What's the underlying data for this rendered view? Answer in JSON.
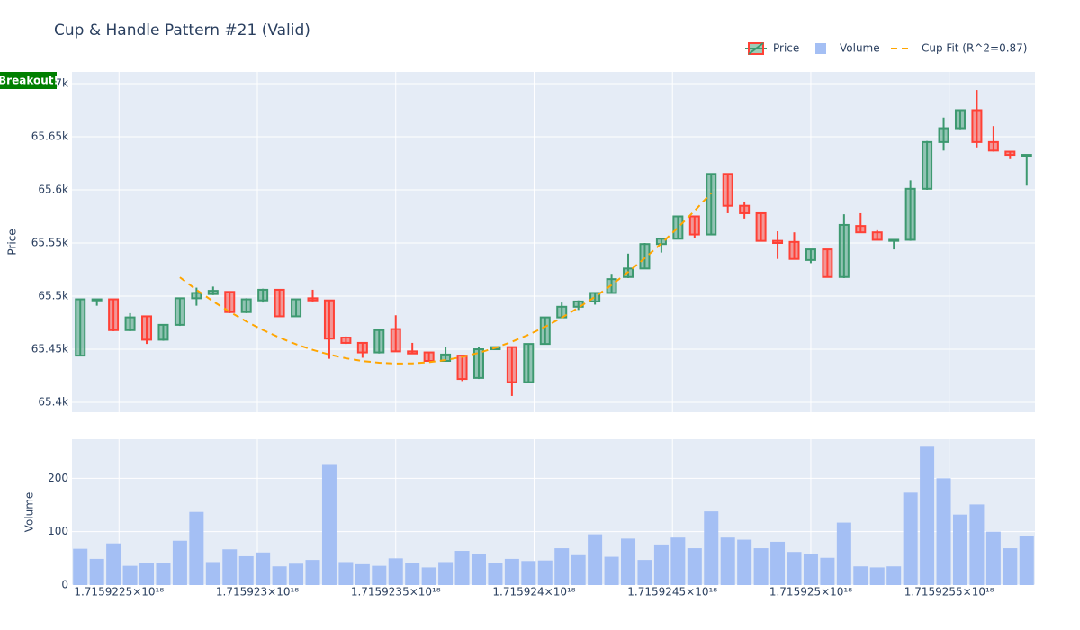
{
  "chart_data": [
    {
      "type": "candlestick",
      "title": "Cup & Handle Pattern #21 (Valid)",
      "y_label": "Price",
      "annotation": "Breakout!",
      "annotation_color": "#008000",
      "grid": true,
      "xlim": [
        1.71592233e+18,
        1.71592581e+18
      ],
      "xticks": [
        1.7159225e+18,
        1.715923e+18,
        1.7159235e+18,
        1.715924e+18,
        1.7159245e+18,
        1.715925e+18,
        1.7159255e+18
      ],
      "ylim": [
        65390.7,
        65711
      ],
      "yticks": [
        {
          "value": 65400,
          "label": "65.4k"
        },
        {
          "value": 65450,
          "label": "65.45k"
        },
        {
          "value": 65500,
          "label": "65.5k"
        },
        {
          "value": 65550,
          "label": "65.55k"
        },
        {
          "value": 65600,
          "label": "65.6k"
        },
        {
          "value": 65650,
          "label": "65.65k"
        },
        {
          "value": 65700,
          "label": "65.7k"
        }
      ],
      "series": [
        {
          "name": "Price",
          "type": "candlestick",
          "increasing_color": "#3D9970",
          "decreasing_color": "#FF4136",
          "x": [
            1.71592236e+18,
            1.71592242e+18,
            1.71592248e+18,
            1.71592254e+18,
            1.7159226e+18,
            1.71592266e+18,
            1.71592272e+18,
            1.71592278e+18,
            1.71592284e+18,
            1.7159229e+18,
            1.71592296e+18,
            1.71592302e+18,
            1.71592308e+18,
            1.71592314e+18,
            1.7159232e+18,
            1.71592326e+18,
            1.71592332e+18,
            1.71592338e+18,
            1.71592344e+18,
            1.7159235e+18,
            1.71592356e+18,
            1.71592362e+18,
            1.71592368e+18,
            1.71592374e+18,
            1.7159238e+18,
            1.71592386e+18,
            1.71592392e+18,
            1.71592398e+18,
            1.71592404e+18,
            1.7159241e+18,
            1.71592416e+18,
            1.71592422e+18,
            1.71592428e+18,
            1.71592434e+18,
            1.7159244e+18,
            1.71592446e+18,
            1.71592452e+18,
            1.71592458e+18,
            1.71592464e+18,
            1.7159247e+18,
            1.71592476e+18,
            1.71592482e+18,
            1.71592488e+18,
            1.71592494e+18,
            1.715925e+18,
            1.71592506e+18,
            1.71592512e+18,
            1.71592518e+18,
            1.71592524e+18,
            1.7159253e+18,
            1.71592536e+18,
            1.71592542e+18,
            1.71592548e+18,
            1.71592554e+18,
            1.7159256e+18,
            1.71592566e+18,
            1.71592572e+18,
            1.71592578e+18
          ],
          "open": [
            65444,
            65496,
            65497,
            65468,
            65481,
            65459,
            65473,
            65498,
            65502,
            65504,
            65485,
            65496,
            65506,
            65481,
            65498,
            65496,
            65461,
            65456,
            65447,
            65469,
            65448,
            65447,
            65439,
            65444,
            65423,
            65450,
            65452,
            65419,
            65455,
            65480,
            65490,
            65495,
            65503,
            65518,
            65526,
            65549,
            65554,
            65575,
            65558,
            65615,
            65585,
            65578,
            65552,
            65551,
            65534,
            65544,
            65518,
            65566,
            65560,
            65552,
            65553,
            65601,
            65645,
            65658,
            65675,
            65645,
            65636,
            65632
          ],
          "high": [
            65497,
            65497,
            65497,
            65484,
            65481,
            65473,
            65498,
            65508,
            65509,
            65504,
            65498,
            65507,
            65506,
            65497,
            65506,
            65496,
            65462,
            65456,
            65468,
            65482,
            65456,
            65447,
            65452,
            65444,
            65452,
            65452,
            65452,
            65455,
            65480,
            65494,
            65496,
            65503,
            65521,
            65540,
            65550,
            65555,
            65575,
            65575,
            65615,
            65615,
            65589,
            65578,
            65561,
            65560,
            65544,
            65544,
            65577,
            65578,
            65562,
            65553,
            65609,
            65646,
            65668,
            65675,
            65694,
            65660,
            65636,
            65633
          ],
          "low": [
            65444,
            65491,
            65467,
            65467,
            65455,
            65458,
            65472,
            65491,
            65501,
            65484,
            65484,
            65494,
            65481,
            65481,
            65495,
            65441,
            65455,
            65442,
            65446,
            65448,
            65446,
            65439,
            65439,
            65420,
            65422,
            65450,
            65406,
            65419,
            65455,
            65480,
            65487,
            65492,
            65503,
            65517,
            65526,
            65541,
            65554,
            65555,
            65558,
            65578,
            65573,
            65552,
            65535,
            65535,
            65531,
            65518,
            65517,
            65560,
            65553,
            65544,
            65552,
            65600,
            65637,
            65657,
            65640,
            65636,
            65629,
            65604
          ],
          "close": [
            65497,
            65497,
            65468,
            65480,
            65459,
            65473,
            65498,
            65503,
            65505,
            65485,
            65497,
            65506,
            65481,
            65497,
            65496,
            65460,
            65456,
            65447,
            65468,
            65448,
            65446,
            65439,
            65445,
            65422,
            65450,
            65452,
            65419,
            65455,
            65480,
            65490,
            65495,
            65503,
            65516,
            65526,
            65549,
            65554,
            65575,
            65558,
            65615,
            65585,
            65578,
            65552,
            65550,
            65535,
            65544,
            65518,
            65567,
            65560,
            65553,
            65553,
            65601,
            65645,
            65658,
            65675,
            65645,
            65637,
            65633,
            65633
          ]
        },
        {
          "name": "Cup Fit (R^2=0.87)",
          "type": "line",
          "color": "#FFA500",
          "dash": true,
          "x": [
            1.71592272e+18,
            1.71592278e+18,
            1.71592284e+18,
            1.7159229e+18,
            1.71592296e+18,
            1.71592302e+18,
            1.71592308e+18,
            1.71592314e+18,
            1.7159232e+18,
            1.71592326e+18,
            1.71592332e+18,
            1.71592338e+18,
            1.71592344e+18,
            1.7159235e+18,
            1.71592356e+18,
            1.71592362e+18,
            1.71592368e+18,
            1.71592374e+18,
            1.7159238e+18,
            1.71592386e+18,
            1.71592392e+18,
            1.71592398e+18,
            1.71592404e+18,
            1.7159241e+18,
            1.71592416e+18,
            1.71592422e+18,
            1.71592428e+18,
            1.71592434e+18,
            1.7159244e+18,
            1.71592446e+18,
            1.71592452e+18,
            1.71592458e+18,
            1.71592464e+18
          ],
          "values": [
            65517.7,
            65505.9,
            65495.1,
            65485.2,
            65476.2,
            65468.1,
            65461,
            65454.7,
            65449.4,
            65445,
            65441.5,
            65438.9,
            65437.3,
            65436.5,
            65436.7,
            65437.8,
            65439.8,
            65442.8,
            65446.6,
            65451.4,
            65457.1,
            65463.7,
            65471.2,
            65479.7,
            65489.1,
            65499.3,
            65510.5,
            65522.7,
            65535.7,
            65549.6,
            65564.5,
            65580.3,
            65597
          ]
        }
      ]
    },
    {
      "type": "bar",
      "y_label": "Volume",
      "grid": true,
      "xlim": [
        1.71592233e+18,
        1.71592581e+18
      ],
      "xticks": [
        {
          "value": 1.7159225e+18,
          "label": "1.7159225×10¹⁸"
        },
        {
          "value": 1.715923e+18,
          "label": "1.715923×10¹⁸"
        },
        {
          "value": 1.7159235e+18,
          "label": "1.7159235×10¹⁸"
        },
        {
          "value": 1.715924e+18,
          "label": "1.715924×10¹⁸"
        },
        {
          "value": 1.7159245e+18,
          "label": "1.7159245×10¹⁸"
        },
        {
          "value": 1.715925e+18,
          "label": "1.715925×10¹⁸"
        },
        {
          "value": 1.7159255e+18,
          "label": "1.7159255×10¹⁸"
        }
      ],
      "ylim": [
        0,
        273
      ],
      "yticks": [
        0,
        100,
        200
      ],
      "series": [
        {
          "name": "Volume",
          "type": "bar",
          "color": "#a4bff4",
          "x": [
            1.71592236e+18,
            1.71592242e+18,
            1.71592248e+18,
            1.71592254e+18,
            1.7159226e+18,
            1.71592266e+18,
            1.71592272e+18,
            1.71592278e+18,
            1.71592284e+18,
            1.7159229e+18,
            1.71592296e+18,
            1.71592302e+18,
            1.71592308e+18,
            1.71592314e+18,
            1.7159232e+18,
            1.71592326e+18,
            1.71592332e+18,
            1.71592338e+18,
            1.71592344e+18,
            1.7159235e+18,
            1.71592356e+18,
            1.71592362e+18,
            1.71592368e+18,
            1.71592374e+18,
            1.7159238e+18,
            1.71592386e+18,
            1.71592392e+18,
            1.71592398e+18,
            1.71592404e+18,
            1.7159241e+18,
            1.71592416e+18,
            1.71592422e+18,
            1.71592428e+18,
            1.71592434e+18,
            1.7159244e+18,
            1.71592446e+18,
            1.71592452e+18,
            1.71592458e+18,
            1.71592464e+18,
            1.7159247e+18,
            1.71592476e+18,
            1.71592482e+18,
            1.71592488e+18,
            1.71592494e+18,
            1.715925e+18,
            1.71592506e+18,
            1.71592512e+18,
            1.71592518e+18,
            1.71592524e+18,
            1.7159253e+18,
            1.71592536e+18,
            1.71592542e+18,
            1.71592548e+18,
            1.71592554e+18,
            1.7159256e+18,
            1.71592566e+18,
            1.71592572e+18,
            1.71592578e+18
          ],
          "values": [
            68,
            49,
            78,
            36,
            41,
            42,
            83,
            137,
            43,
            67,
            54,
            61,
            35,
            40,
            47,
            225,
            43,
            39,
            36,
            50,
            42,
            33,
            43,
            64,
            59,
            42,
            49,
            45,
            46,
            69,
            56,
            95,
            53,
            87,
            47,
            76,
            89,
            69,
            138,
            89,
            85,
            69,
            81,
            62,
            59,
            51,
            117,
            35,
            33,
            35,
            173,
            259,
            200,
            132,
            151,
            100,
            69,
            92
          ]
        }
      ]
    }
  ]
}
